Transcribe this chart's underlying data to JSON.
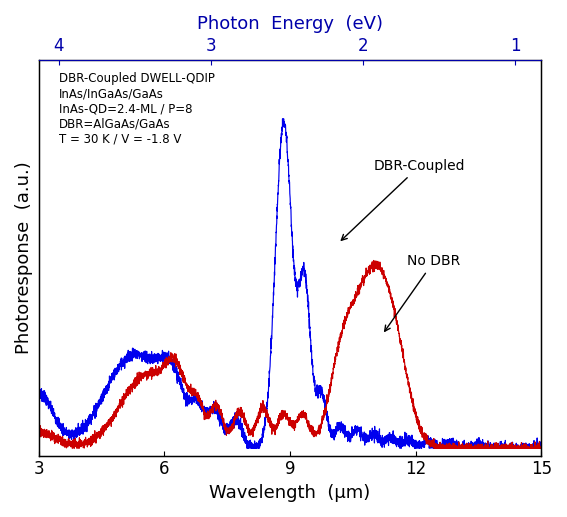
{
  "xlabel": "Wavelength  (μm)",
  "ylabel": "Photoresponse  (a.u.)",
  "top_xlabel": "Photon  Energy  (eV)",
  "xlim": [
    3,
    15
  ],
  "ylim": [
    0,
    1.08
  ],
  "annotation_lines": [
    "DBR-Coupled DWELL-QDIP",
    "InAs/InGaAs/GaAs",
    "InAs-QD=2.4-ML / P=8",
    "DBR=AlGaAs/GaAs",
    "T = 30 K / V = -1.8 V"
  ],
  "label_DBR": "DBR-Coupled",
  "label_noDBR": "No DBR",
  "color_DBR": "#0000EE",
  "color_noDBR": "#CC0000",
  "eV_ticks": [
    4,
    3,
    2,
    1
  ],
  "wl_ticks": [
    3,
    6,
    9,
    12,
    15
  ]
}
